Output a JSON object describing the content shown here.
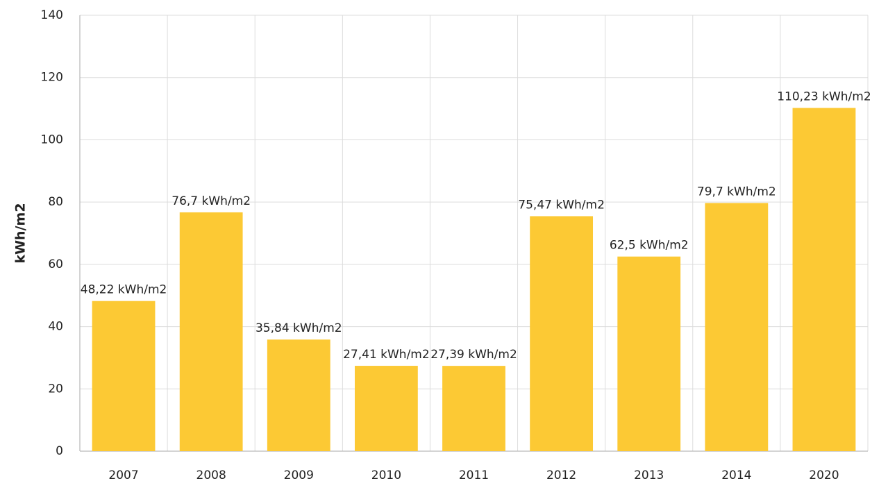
{
  "chart_data": {
    "type": "bar",
    "y_label": "kWh/m2",
    "categories": [
      "2007",
      "2008",
      "2009",
      "2010",
      "2011",
      "2012",
      "2013",
      "2014",
      "2020"
    ],
    "values": [
      48.22,
      76.7,
      35.84,
      27.41,
      27.39,
      75.47,
      62.5,
      79.7,
      110.23
    ],
    "value_labels": [
      "48,22 kWh/m2",
      "76,7 kWh/m2",
      "35,84 kWh/m2",
      "27,41 kWh/m2",
      "27,39 kWh/m2",
      "75,47 kWh/m2",
      "62,5 kWh/m2",
      "79,7 kWh/m2",
      "110,23 kWh/m2"
    ],
    "color": "#fcc934",
    "ylim": [
      0,
      140
    ],
    "yticks": [
      0,
      20,
      40,
      60,
      80,
      100,
      120,
      140
    ],
    "grid": true
  }
}
